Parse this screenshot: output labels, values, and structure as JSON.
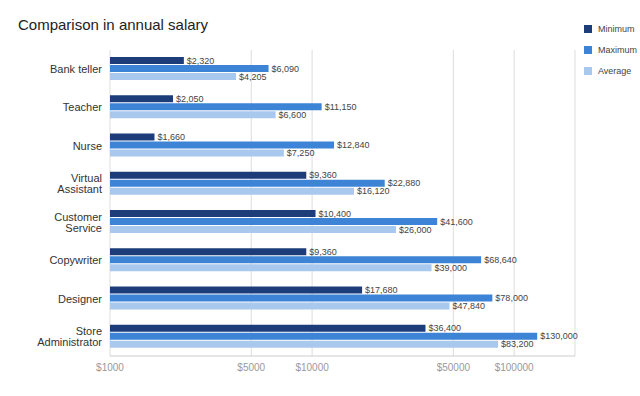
{
  "chart_data": {
    "type": "bar",
    "title": "Comparison in annual salary",
    "orientation": "horizontal",
    "categories": [
      "Bank teller",
      "Teacher",
      "Nurse",
      "Virtual Assistant",
      "Customer Service",
      "Copywriter",
      "Designer",
      "Store Administrator"
    ],
    "series": [
      {
        "name": "Minimum",
        "color": "#1c3d7a",
        "values": [
          2320,
          2050,
          1660,
          9360,
          10400,
          9360,
          17680,
          36400
        ],
        "value_labels": [
          "$2,320",
          "$2,050",
          "$1,660",
          "$9,360",
          "$10,400",
          "$9,360",
          "$17,680",
          "$36,400"
        ]
      },
      {
        "name": "Maximum",
        "color": "#3d84d6",
        "values": [
          6090,
          11150,
          12840,
          22880,
          41600,
          68640,
          78000,
          130000
        ],
        "value_labels": [
          "$6,090",
          "$11,150",
          "$12,840",
          "$22,880",
          "$41,600",
          "$68,640",
          "$78,000",
          "$130,000"
        ]
      },
      {
        "name": "Average",
        "color": "#a8c8ee",
        "values": [
          4205,
          6600,
          7250,
          16120,
          26000,
          39000,
          47840,
          83200
        ],
        "value_labels": [
          "$4,205",
          "$6,600",
          "$7,250",
          "$16,120",
          "$26,000",
          "$39,000",
          "$47,840",
          "$83,200"
        ]
      }
    ],
    "xlim": [
      1000,
      200000
    ],
    "xticks": [
      {
        "value": 1000,
        "label": "$1000"
      },
      {
        "value": 5000,
        "label": "$5000"
      },
      {
        "value": 10000,
        "label": "$10000"
      },
      {
        "value": 50000,
        "label": "$50000"
      },
      {
        "value": 100000,
        "label": "$100000"
      }
    ],
    "log": "x",
    "grid": true,
    "legend": "top-right",
    "data_labels": true
  }
}
